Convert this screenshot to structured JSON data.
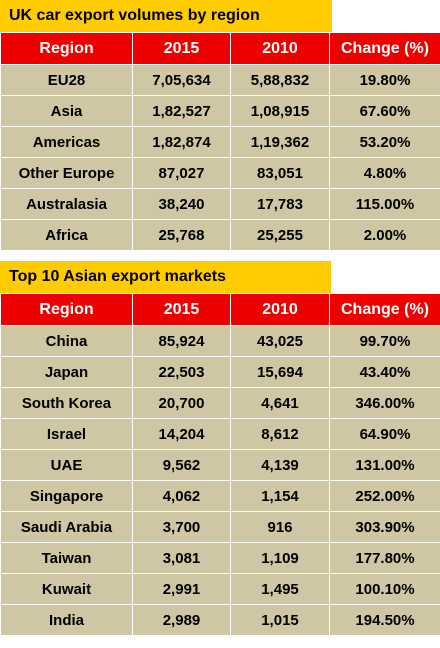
{
  "tables": [
    {
      "title": "UK car export volumes by region",
      "headers": [
        "Region",
        "2015",
        "2010",
        "Change (%)"
      ],
      "rows": [
        [
          "EU28",
          "7,05,634",
          "5,88,832",
          "19.80%"
        ],
        [
          "Asia",
          "1,82,527",
          "1,08,915",
          "67.60%"
        ],
        [
          "Americas",
          "1,82,874",
          "1,19,362",
          "53.20%"
        ],
        [
          "Other Europe",
          "87,027",
          "83,051",
          "4.80%"
        ],
        [
          "Australasia",
          "38,240",
          "17,783",
          "115.00%"
        ],
        [
          "Africa",
          "25,768",
          "25,255",
          "2.00%"
        ]
      ]
    },
    {
      "title": "Top 10 Asian export markets",
      "headers": [
        "Region",
        "2015",
        "2010",
        "Change (%)"
      ],
      "rows": [
        [
          "China",
          "85,924",
          "43,025",
          "99.70%"
        ],
        [
          "Japan",
          "22,503",
          "15,694",
          "43.40%"
        ],
        [
          "South Korea",
          "20,700",
          "4,641",
          "346.00%"
        ],
        [
          "Israel",
          "14,204",
          "8,612",
          "64.90%"
        ],
        [
          "UAE",
          "9,562",
          "4,139",
          "131.00%"
        ],
        [
          "Singapore",
          "4,062",
          "1,154",
          "252.00%"
        ],
        [
          "Saudi Arabia",
          "3,700",
          "916",
          "303.90%"
        ],
        [
          "Taiwan",
          "3,081",
          "1,109",
          "177.80%"
        ],
        [
          "Kuwait",
          "2,991",
          "1,495",
          "100.10%"
        ],
        [
          "India",
          "2,989",
          "1,015",
          "194.50%"
        ]
      ]
    }
  ]
}
